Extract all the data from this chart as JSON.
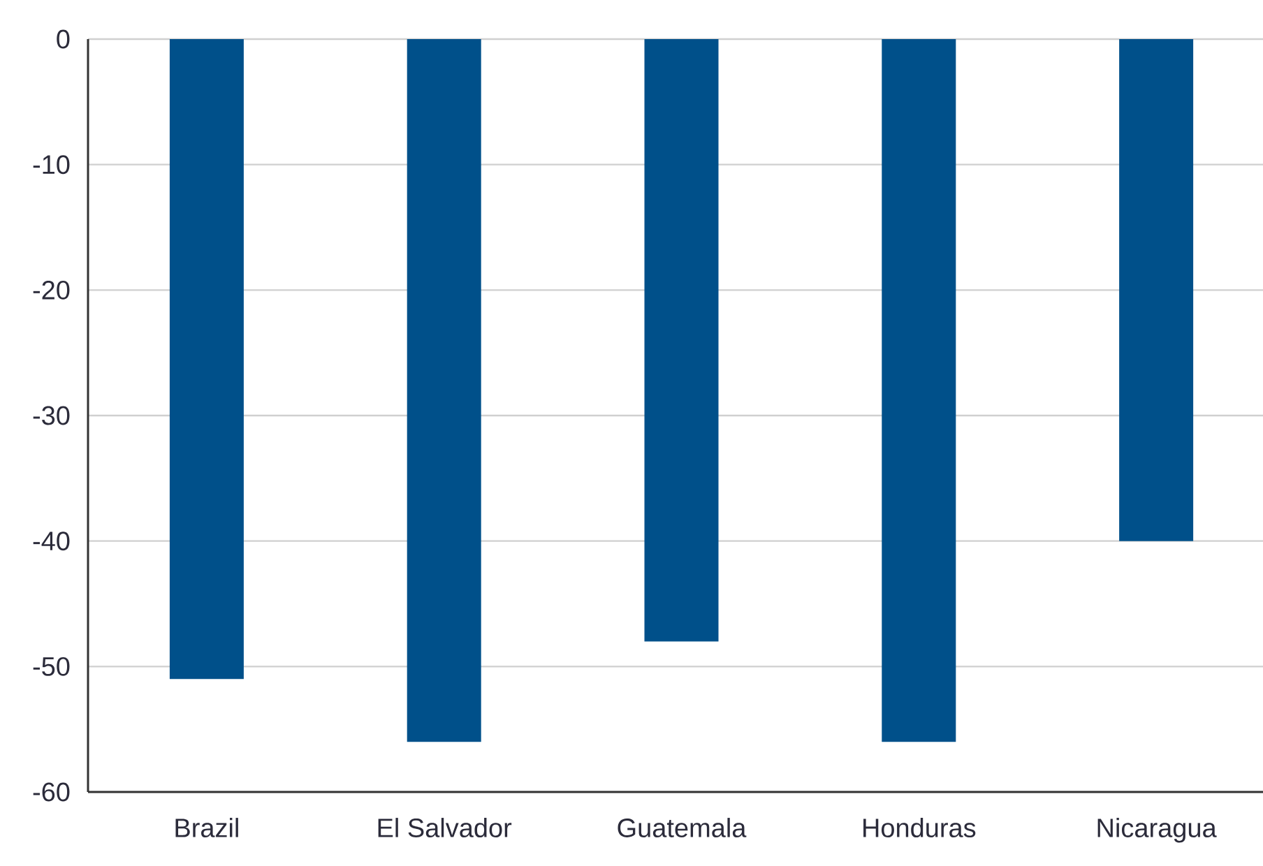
{
  "chart_data": {
    "type": "bar",
    "categories": [
      "Brazil",
      "El Salvador",
      "Guatemala",
      "Honduras",
      "Nicaragua"
    ],
    "values": [
      -51,
      -56,
      -48,
      -56,
      -40
    ],
    "color": "#00508a",
    "ylim": [
      -60,
      0
    ],
    "yticks": [
      0,
      -10,
      -20,
      -30,
      -40,
      -50,
      -60
    ],
    "grid": "y"
  }
}
